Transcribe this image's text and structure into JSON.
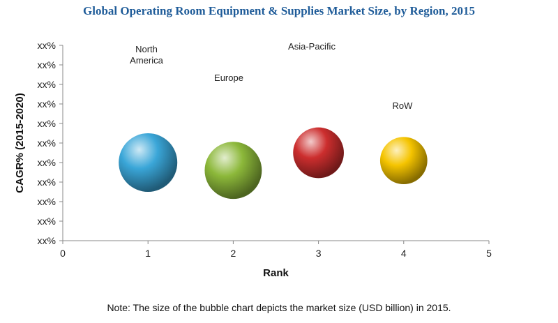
{
  "title": "Global Operating Room Equipment & Supplies Market Size, by Region, 2015",
  "note": "Note: The size of the bubble chart depicts the market size (USD billion) in 2015.",
  "chart_data": {
    "type": "scatter",
    "title": "Global Operating Room Equipment & Supplies Market Size, by Region, 2015",
    "xlabel": "Rank",
    "ylabel": "CAGR% (2015-2020)",
    "xlim": [
      0,
      5
    ],
    "x_ticks": [
      "0",
      "1",
      "2",
      "3",
      "4",
      "5"
    ],
    "y_ticks": [
      "xx%",
      "xx%",
      "xx%",
      "xx%",
      "xx%",
      "xx%",
      "xx%",
      "xx%",
      "xx%",
      "xx%",
      "xx%"
    ],
    "grid": false,
    "legend": "none",
    "points": [
      {
        "label": "North\nAmerica",
        "x": 1,
        "y": 4.0,
        "size": 1.0,
        "color": "#3aa6d8"
      },
      {
        "label": "Europe",
        "x": 2,
        "y": 3.6,
        "size": 0.95,
        "color": "#8cb83a"
      },
      {
        "label": "Asia-Pacific",
        "x": 3,
        "y": 4.5,
        "size": 0.75,
        "color": "#cc2e2e"
      },
      {
        "label": "RoW",
        "x": 4,
        "y": 4.1,
        "size": 0.65,
        "color": "#f5c400"
      }
    ]
  }
}
